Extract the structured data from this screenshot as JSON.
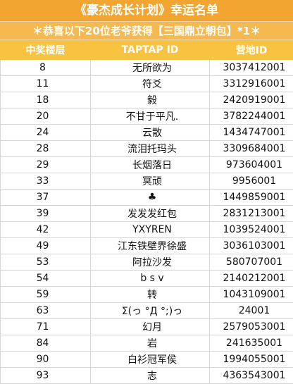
{
  "title": "《豪杰成长计划》幸运名单",
  "subtitle": "＊恭喜以下20位老爷获得【三国鼎立朝包】*1＊",
  "table": {
    "headers": {
      "floor": "中奖楼层",
      "taptap_id": "TAPTAP ID",
      "camp_id": "营地ID"
    },
    "rows": [
      {
        "floor": "8",
        "taptap_id": "无所欲为",
        "camp_id": "3037412001"
      },
      {
        "floor": "11",
        "taptap_id": "符爻",
        "camp_id": "3312916001"
      },
      {
        "floor": "18",
        "taptap_id": "毅",
        "camp_id": "2420919001"
      },
      {
        "floor": "20",
        "taptap_id": "不甘于平凡.",
        "camp_id": "3782244001"
      },
      {
        "floor": "24",
        "taptap_id": "云散",
        "camp_id": "1434747001"
      },
      {
        "floor": "28",
        "taptap_id": "流泪托玛头",
        "camp_id": "3309684001"
      },
      {
        "floor": "29",
        "taptap_id": "长烟落日",
        "camp_id": "973604001"
      },
      {
        "floor": "33",
        "taptap_id": "冥顽",
        "camp_id": "9956001"
      },
      {
        "floor": "37",
        "taptap_id": "♣",
        "camp_id": "1449859001"
      },
      {
        "floor": "39",
        "taptap_id": "发发发红包",
        "camp_id": "2831213001"
      },
      {
        "floor": "42",
        "taptap_id": "YXYREN",
        "camp_id": "1039524001"
      },
      {
        "floor": "49",
        "taptap_id": "江东铁壁界徐盛",
        "camp_id": "3036103001"
      },
      {
        "floor": "53",
        "taptap_id": "阿拉沙发",
        "camp_id": "580707001"
      },
      {
        "floor": "54",
        "taptap_id": "b s v",
        "camp_id": "2140212001"
      },
      {
        "floor": "59",
        "taptap_id": "转",
        "camp_id": "1043109001"
      },
      {
        "floor": "63",
        "taptap_id": "Σ(っ °Д °;)っ",
        "camp_id": "24001"
      },
      {
        "floor": "71",
        "taptap_id": "幻月",
        "camp_id": "2579053001"
      },
      {
        "floor": "84",
        "taptap_id": "岩",
        "camp_id": "241635001"
      },
      {
        "floor": "90",
        "taptap_id": "白衫冠军侯",
        "camp_id": "1994055001"
      },
      {
        "floor": "93",
        "taptap_id": "志",
        "camp_id": "4363543001"
      }
    ]
  },
  "colors": {
    "title_bg": "#f2a531",
    "subtitle_bg": "#f5b950",
    "header_bg": "#f9c342",
    "grid": "#d6d6d6"
  }
}
